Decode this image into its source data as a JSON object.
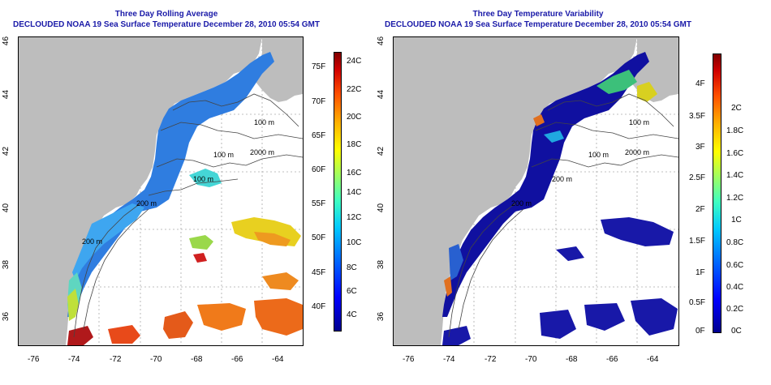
{
  "left_panel": {
    "title_line1": "Three Day Rolling Average",
    "title_line2": "DECLOUDED NOAA 19 Sea Surface Temperature December 28, 2010 05:54 GMT",
    "x_ticks": [
      "-76",
      "-74",
      "-72",
      "-70",
      "-68",
      "-66",
      "-64"
    ],
    "y_ticks": [
      "46",
      "44",
      "42",
      "40",
      "38",
      "36"
    ],
    "colorbar_fahrenheit": [
      "75F",
      "70F",
      "65F",
      "60F",
      "55F",
      "50F",
      "45F",
      "40F"
    ],
    "colorbar_celsius": [
      "24C",
      "22C",
      "20C",
      "18C",
      "16C",
      "14C",
      "12C",
      "10C",
      "8C",
      "6C",
      "4C"
    ],
    "contour_labels": [
      "100 m",
      "2000 m",
      "100 m",
      "200 m",
      "200 m",
      "100 m"
    ]
  },
  "right_panel": {
    "title_line1": "Three Day Temperature Variability",
    "title_line2": "DECLOUDED NOAA 19 Sea Surface Temperature December 28, 2010 05:54 GMT",
    "x_ticks": [
      "-76",
      "-74",
      "-72",
      "-70",
      "-68",
      "-66",
      "-64"
    ],
    "y_ticks": [
      "46",
      "44",
      "42",
      "40",
      "38",
      "36"
    ],
    "colorbar_fahrenheit": [
      "4F",
      "3.5F",
      "3F",
      "2.5F",
      "2F",
      "1.5F",
      "1F",
      "0.5F",
      "0F"
    ],
    "colorbar_celsius": [
      "2C",
      "1.8C",
      "1.6C",
      "1.4C",
      "1.2C",
      "1C",
      "0.8C",
      "0.6C",
      "0.4C",
      "0.2C",
      "0C"
    ],
    "contour_labels": [
      "100 m",
      "2000 m",
      "100 m",
      "200 m",
      "200 m"
    ]
  },
  "colors": {
    "title": "#1a1aa8",
    "land": "#bdbdbd",
    "grid": "#aaaaaa"
  }
}
